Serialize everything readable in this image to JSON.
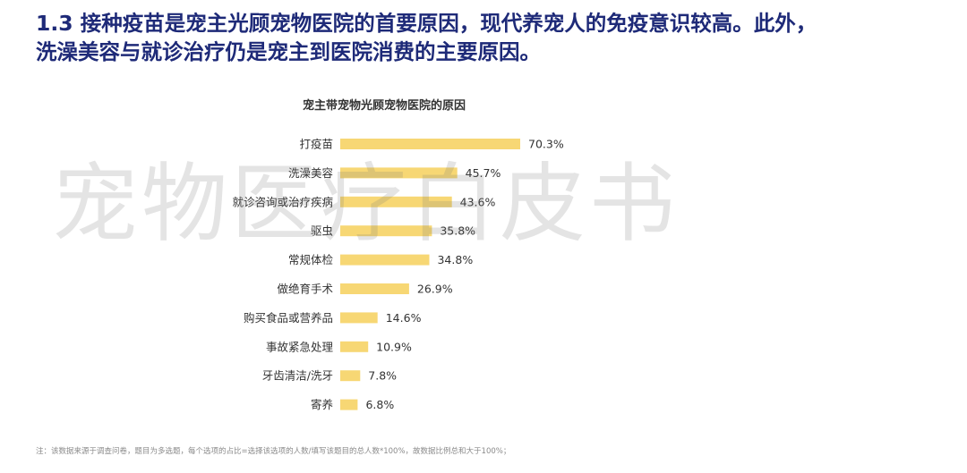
{
  "header": {
    "line1": "1.3 接种疫苗是宠主光顾宠物医院的首要原因，现代养宠人的免疫意识较高。此外，",
    "line2": "洗澡美容与就诊治疗仍是宠主到医院消费的主要原因。"
  },
  "watermark": "宠物医疗白皮书",
  "footnote": "注：该数据来源于调查问卷，题目为多选题，每个选项的占比=选择该选项的人数/填写该题目的总人数*100%，故数据比例总和大于100%；",
  "colors": {
    "bar": "#F7D774",
    "heading": "#1e2a78",
    "text": "#333333"
  },
  "chart_data": {
    "type": "bar",
    "orientation": "horizontal",
    "title": "宠主带宠物光顾宠物医院的原因",
    "categories": [
      "打疫苗",
      "洗澡美容",
      "就诊咨询或治疗疾病",
      "驱虫",
      "常规体检",
      "做绝育手术",
      "购买食品或营养品",
      "事故紧急处理",
      "牙齿清洁/洗牙",
      "寄养"
    ],
    "values": [
      70.3,
      45.7,
      43.6,
      35.8,
      34.8,
      26.9,
      14.6,
      10.9,
      7.8,
      6.8
    ],
    "value_labels": [
      "70.3%",
      "45.7%",
      "43.6%",
      "35.8%",
      "34.8%",
      "26.9%",
      "14.6%",
      "10.9%",
      "7.8%",
      "6.8%"
    ],
    "unit": "%",
    "xlim": [
      0,
      70.3
    ],
    "xlabel": "",
    "ylabel": "",
    "grid": false,
    "legend": "none"
  }
}
